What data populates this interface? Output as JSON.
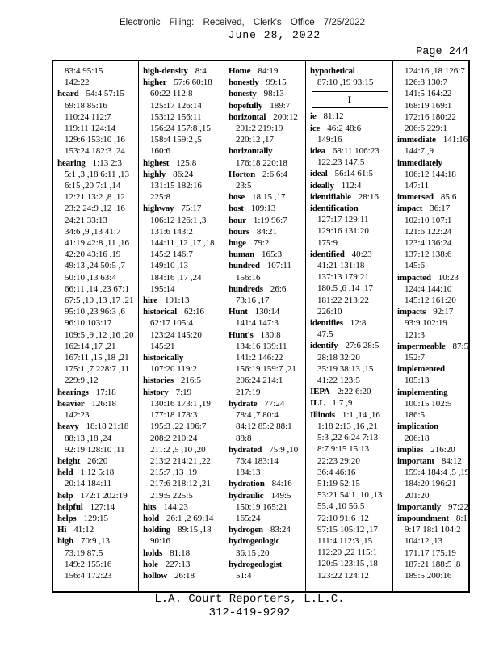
{
  "header": {
    "line1": "Electronic Filing: Received, Clerk's Office 7/25/2022",
    "line2": "June 28, 2022",
    "page_label": "Page 244"
  },
  "footer": {
    "company": "L.A. Court Reporters, L.L.C.",
    "phone": "312-419-9292"
  },
  "index": {
    "columns": [
      [
        {
          "r": "83:4 95:15",
          "c": true
        },
        {
          "r": "142:22",
          "c": true
        },
        {
          "w": "heard",
          "r": "54:4 57:15"
        },
        {
          "r": "69:18 85:16",
          "c": true
        },
        {
          "r": "110:24 112:7",
          "c": true
        },
        {
          "r": "119:11 124:14",
          "c": true
        },
        {
          "r": "129:6 153:10 ,16",
          "c": true
        },
        {
          "r": "153:24 182:3 ,24",
          "c": true
        },
        {
          "w": "hearing",
          "r": "1:13 2:3"
        },
        {
          "r": "5:1 ,3 ,18 6:11 ,13",
          "c": true
        },
        {
          "r": "6:15 ,20 7:1 ,14",
          "c": true
        },
        {
          "r": "12:21 13:2 ,8 ,12",
          "c": true
        },
        {
          "r": "23:2 24:9 ,12 ,16",
          "c": true
        },
        {
          "r": "24:21 33:13",
          "c": true
        },
        {
          "r": "34:6 ,9 ,13 41:7",
          "c": true
        },
        {
          "r": "41:19 42:8 ,11 ,16",
          "c": true
        },
        {
          "r": "42:20 43:16 ,19",
          "c": true
        },
        {
          "r": "49:13 ,24 50:5 ,7",
          "c": true
        },
        {
          "r": "50:10 ,13 63:4",
          "c": true
        },
        {
          "r": "66:11 ,14 ,23 67:1",
          "c": true
        },
        {
          "r": "67:5 ,10 ,13 ,17 ,21",
          "c": true
        },
        {
          "r": "95:10 ,23 96:3 ,6",
          "c": true
        },
        {
          "r": "96:10 103:17",
          "c": true
        },
        {
          "r": "109:5 ,9 ,12 ,16 ,20",
          "c": true
        },
        {
          "r": "162:14 ,17 ,21",
          "c": true
        },
        {
          "r": "167:11 ,15 ,18 ,21",
          "c": true
        },
        {
          "r": "175:1 ,7 228:7 ,11",
          "c": true
        },
        {
          "r": "229:9 ,12",
          "c": true
        },
        {
          "w": "hearings",
          "r": "17:18"
        },
        {
          "w": "heavier",
          "r": "126:18"
        },
        {
          "r": "142:23",
          "c": true
        },
        {
          "w": "heavy",
          "r": "18:18 21:18"
        },
        {
          "r": "88:13 ,18 ,24",
          "c": true
        },
        {
          "r": "92:19 128:10 ,11",
          "c": true
        },
        {
          "w": "height",
          "r": "26:20"
        },
        {
          "w": "held",
          "r": "1:12 5:18"
        },
        {
          "r": "20:14 184:11",
          "c": true
        },
        {
          "w": "help",
          "r": "172:1 202:19"
        },
        {
          "w": "helpful",
          "r": "127:14"
        },
        {
          "w": "helps",
          "r": "129:15"
        },
        {
          "w": "Hi",
          "r": "41:12"
        },
        {
          "w": "high",
          "r": "70:9 ,13"
        },
        {
          "r": "73:19 87:5",
          "c": true
        },
        {
          "r": "149:2 155:16",
          "c": true
        },
        {
          "r": "156:4 172:23",
          "c": true
        }
      ],
      [
        {
          "w": "high-density",
          "r": "8:4"
        },
        {
          "w": "higher",
          "r": "57:6 60:18"
        },
        {
          "r": "60:22 112:8",
          "c": true
        },
        {
          "r": "125:17 126:14",
          "c": true
        },
        {
          "r": "153:12 156:11",
          "c": true
        },
        {
          "r": "156:24 157:8 ,15",
          "c": true
        },
        {
          "r": "158:4 159:2 ,5",
          "c": true
        },
        {
          "r": "160:6",
          "c": true
        },
        {
          "w": "highest",
          "r": "125:8"
        },
        {
          "w": "highly",
          "r": "86:24"
        },
        {
          "r": "131:15 182:16",
          "c": true
        },
        {
          "r": "225:8",
          "c": true
        },
        {
          "w": "highway",
          "r": "75:17"
        },
        {
          "r": "106:12 126:1 ,3",
          "c": true
        },
        {
          "r": "131:6 143:2",
          "c": true
        },
        {
          "r": "144:11 ,12 ,17 ,18",
          "c": true
        },
        {
          "r": "145:2 146:7",
          "c": true
        },
        {
          "r": "149:10 ,13",
          "c": true
        },
        {
          "r": "184:16 ,17 ,24",
          "c": true
        },
        {
          "r": "195:14",
          "c": true
        },
        {
          "w": "hire",
          "r": "191:13"
        },
        {
          "w": "historical",
          "r": "62:16"
        },
        {
          "r": "62:17 105:4",
          "c": true
        },
        {
          "r": "123:24 145:20",
          "c": true
        },
        {
          "r": "145:21",
          "c": true
        },
        {
          "w": "historically",
          "r": ""
        },
        {
          "r": "107:20 119:2",
          "c": true
        },
        {
          "w": "histories",
          "r": "216:5"
        },
        {
          "w": "history",
          "r": "7:19"
        },
        {
          "r": "130:16 173:1 ,19",
          "c": true
        },
        {
          "r": "177:18 178:3",
          "c": true
        },
        {
          "r": "195:3 ,22 196:7",
          "c": true
        },
        {
          "r": "208:2 210:24",
          "c": true
        },
        {
          "r": "211:2 ,5 ,10 ,20",
          "c": true
        },
        {
          "r": "213:2 214:21 ,22",
          "c": true
        },
        {
          "r": "215:7 ,13 ,19",
          "c": true
        },
        {
          "r": "217:6 218:12 ,21",
          "c": true
        },
        {
          "r": "219:5 225:5",
          "c": true
        },
        {
          "w": "hits",
          "r": "144:23"
        },
        {
          "w": "hold",
          "r": "26:1 ,2 69:14"
        },
        {
          "w": "holding",
          "r": "89:15 ,18"
        },
        {
          "r": "90:16",
          "c": true
        },
        {
          "w": "holds",
          "r": "81:18"
        },
        {
          "w": "hole",
          "r": "227:13"
        },
        {
          "w": "hollow",
          "r": "26:18"
        }
      ],
      [
        {
          "w": "Home",
          "r": "84:19"
        },
        {
          "w": "honestly",
          "r": "99:15"
        },
        {
          "w": "honesty",
          "r": "98:13"
        },
        {
          "w": "hopefully",
          "r": "189:7"
        },
        {
          "w": "horizontal",
          "r": "200:12"
        },
        {
          "r": "201:2 219:19",
          "c": true
        },
        {
          "r": "220:12 ,17",
          "c": true
        },
        {
          "w": "horizontally",
          "r": ""
        },
        {
          "r": "176:18 220:18",
          "c": true
        },
        {
          "w": "Horton",
          "r": "2:6 6:4"
        },
        {
          "r": "23:5",
          "c": true
        },
        {
          "w": "hose",
          "r": "18:15 ,17"
        },
        {
          "w": "host",
          "r": "109:13"
        },
        {
          "w": "hour",
          "r": "1:19 96:7"
        },
        {
          "w": "hours",
          "r": "84:21"
        },
        {
          "w": "huge",
          "r": "79:2"
        },
        {
          "w": "human",
          "r": "165:3"
        },
        {
          "w": "hundred",
          "r": "107:11"
        },
        {
          "r": "156:16",
          "c": true
        },
        {
          "w": "hundreds",
          "r": "26:6"
        },
        {
          "r": "73:16 ,17",
          "c": true
        },
        {
          "w": "Hunt",
          "r": "130:14"
        },
        {
          "r": "141:4 147:3",
          "c": true
        },
        {
          "w": "Hunt's",
          "r": "130:8"
        },
        {
          "r": "134:16 139:11",
          "c": true
        },
        {
          "r": "141:2 146:22",
          "c": true
        },
        {
          "r": "156:19 159:7 ,21",
          "c": true
        },
        {
          "r": "206:24 214:1",
          "c": true
        },
        {
          "r": "217:19",
          "c": true
        },
        {
          "w": "hydrate",
          "r": "77:24"
        },
        {
          "r": "78:4 ,7 80:4",
          "c": true
        },
        {
          "r": "84:12 85:2 88:1",
          "c": true
        },
        {
          "r": "88:8",
          "c": true
        },
        {
          "w": "hydrated",
          "r": "75:9 ,10"
        },
        {
          "r": "76:4 183:14",
          "c": true
        },
        {
          "r": "184:13",
          "c": true
        },
        {
          "w": "hydration",
          "r": "84:16"
        },
        {
          "w": "hydraulic",
          "r": "149:5"
        },
        {
          "r": "150:19 165:21",
          "c": true
        },
        {
          "r": "165:24",
          "c": true
        },
        {
          "w": "hydrogen",
          "r": "83:24"
        },
        {
          "w": "hydrogeologic",
          "r": ""
        },
        {
          "r": "36:15 ,20",
          "c": true
        },
        {
          "w": "hydrogeologist",
          "r": ""
        },
        {
          "r": "51:4",
          "c": true
        }
      ],
      [
        {
          "w": "hypothetical",
          "r": ""
        },
        {
          "r": "87:10 ,19 93:15",
          "c": true
        },
        {
          "s": "I"
        },
        {
          "w": "ie",
          "r": "81:12"
        },
        {
          "w": "ice",
          "r": "46:2 48:6"
        },
        {
          "r": "149:16",
          "c": true
        },
        {
          "w": "idea",
          "r": "68:11 106:23"
        },
        {
          "r": "122:23 147:5",
          "c": true
        },
        {
          "w": "ideal",
          "r": "56:14 61:5"
        },
        {
          "w": "ideally",
          "r": "112:4"
        },
        {
          "w": "identifiable",
          "r": "28:16"
        },
        {
          "w": "identification",
          "r": ""
        },
        {
          "r": "127:17 129:11",
          "c": true
        },
        {
          "r": "129:16 131:20",
          "c": true
        },
        {
          "r": "175:9",
          "c": true
        },
        {
          "w": "identified",
          "r": "40:23"
        },
        {
          "r": "41:21 131:18",
          "c": true
        },
        {
          "r": "137:13 179:21",
          "c": true
        },
        {
          "r": "180:5 ,6 ,14 ,17",
          "c": true
        },
        {
          "r": "181:22 213:22",
          "c": true
        },
        {
          "r": "226:10",
          "c": true
        },
        {
          "w": "identifies",
          "r": "12:8"
        },
        {
          "r": "47:5",
          "c": true
        },
        {
          "w": "identify",
          "r": "27:6 28:5"
        },
        {
          "r": "28:18 32:20",
          "c": true
        },
        {
          "r": "35:19 38:13 ,15",
          "c": true
        },
        {
          "r": "41:22 123:5",
          "c": true
        },
        {
          "w": "IEPA",
          "r": "2:22 6:20"
        },
        {
          "w": "ILL",
          "r": "1:7 ,9"
        },
        {
          "w": "Illinois",
          "r": "1:1 ,14 ,16"
        },
        {
          "r": "1:18 2:13 ,16 ,21",
          "c": true
        },
        {
          "r": "5:3 ,22 6:24 7:13",
          "c": true
        },
        {
          "r": "8:7 9:15 15:13",
          "c": true
        },
        {
          "r": "22:23 29:20",
          "c": true
        },
        {
          "r": "36:4 46:16",
          "c": true
        },
        {
          "r": "51:19 52:15",
          "c": true
        },
        {
          "r": "53:21 54:1 ,10 ,13",
          "c": true
        },
        {
          "r": "55:4 ,10 56:5",
          "c": true
        },
        {
          "r": "72:10 91:6 ,12",
          "c": true
        },
        {
          "r": "97:15 105:12 ,17",
          "c": true
        },
        {
          "r": "111:4 112:3 ,15",
          "c": true
        },
        {
          "r": "112:20 ,22 115:1",
          "c": true
        },
        {
          "r": "120:5 123:15 ,18",
          "c": true
        },
        {
          "r": "123:22 124:12",
          "c": true
        }
      ],
      [
        {
          "r": "124:16 ,18 126:7",
          "c": true
        },
        {
          "r": "126:8 130:7",
          "c": true
        },
        {
          "r": "141:5 164:22",
          "c": true
        },
        {
          "r": "168:19 169:1",
          "c": true
        },
        {
          "r": "172:16 180:22",
          "c": true
        },
        {
          "r": "206:6 229:1",
          "c": true
        },
        {
          "w": "immediate",
          "r": "141:16"
        },
        {
          "r": "144:7 ,9",
          "c": true
        },
        {
          "w": "immediately",
          "r": ""
        },
        {
          "r": "106:12 144:18",
          "c": true
        },
        {
          "r": "147:11",
          "c": true
        },
        {
          "w": "immersed",
          "r": "85:6"
        },
        {
          "w": "impact",
          "r": "36:17"
        },
        {
          "r": "102:10 107:1",
          "c": true
        },
        {
          "r": "121:6 122:24",
          "c": true
        },
        {
          "r": "123:4 136:24",
          "c": true
        },
        {
          "r": "137:12 138:6",
          "c": true
        },
        {
          "r": "145:6",
          "c": true
        },
        {
          "w": "impacted",
          "r": "10:23"
        },
        {
          "r": "124:4 144:10",
          "c": true
        },
        {
          "r": "145:12 161:20",
          "c": true
        },
        {
          "w": "impacts",
          "r": "92:17"
        },
        {
          "r": "93:9 102:19",
          "c": true
        },
        {
          "r": "121:3",
          "c": true
        },
        {
          "w": "impermeable",
          "r": "87:5"
        },
        {
          "r": "152:7",
          "c": true
        },
        {
          "w": "implemented",
          "r": ""
        },
        {
          "r": "105:13",
          "c": true
        },
        {
          "w": "implementing",
          "r": ""
        },
        {
          "r": "100:15 102:5",
          "c": true
        },
        {
          "r": "186:5",
          "c": true
        },
        {
          "w": "implication",
          "r": ""
        },
        {
          "r": "206:18",
          "c": true
        },
        {
          "w": "implies",
          "r": "216:20"
        },
        {
          "w": "important",
          "r": "84:12"
        },
        {
          "r": "159:4 184:4 ,5 ,19",
          "c": true
        },
        {
          "r": "184:20 196:21",
          "c": true
        },
        {
          "r": "201:20",
          "c": true
        },
        {
          "w": "importantly",
          "r": "97:22"
        },
        {
          "w": "impoundment",
          "r": "8:1"
        },
        {
          "r": "9:17 18:1 104:2",
          "c": true
        },
        {
          "r": "104:12 ,13",
          "c": true
        },
        {
          "r": "171:17 175:19",
          "c": true
        },
        {
          "r": "187:21 188:5 ,8",
          "c": true
        },
        {
          "r": "189:5 200:16",
          "c": true
        }
      ]
    ]
  }
}
